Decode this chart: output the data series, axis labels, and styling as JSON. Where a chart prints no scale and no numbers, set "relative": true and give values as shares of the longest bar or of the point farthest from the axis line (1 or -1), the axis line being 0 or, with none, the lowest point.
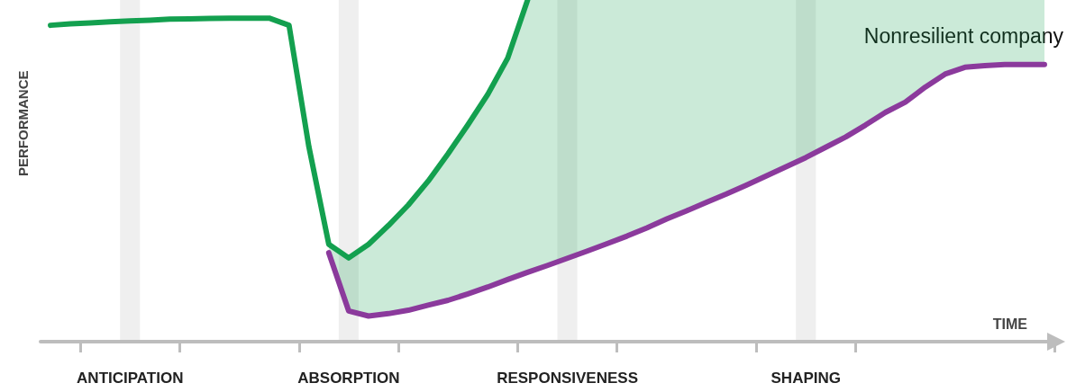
{
  "chart_data": {
    "type": "line",
    "relative": true,
    "xlabel": "TIME",
    "ylabel": "PERFORMANCE",
    "categories": [
      null,
      null,
      null,
      null,
      "ANTICIPATION",
      null,
      null,
      null,
      null,
      null,
      null,
      null,
      null,
      null,
      null,
      "ABSORPTION",
      null,
      null,
      null,
      null,
      null,
      null,
      null,
      null,
      null,
      null,
      "RESPONSIVENESS",
      null,
      null,
      null,
      null,
      null,
      null,
      null,
      null,
      null,
      null,
      null,
      "SHAPING",
      null,
      null,
      null,
      null,
      null,
      null,
      null,
      null,
      null,
      null,
      null,
      null
    ],
    "series": [
      {
        "color": "#13a04f",
        "values": [
          0.926,
          0.93,
          0.933,
          0.936,
          0.939,
          0.941,
          0.944,
          0.945,
          0.946,
          0.947,
          0.947,
          0.947,
          0.926,
          0.57,
          0.285,
          0.245,
          0.285,
          0.34,
          0.4,
          0.47,
          0.55,
          0.635,
          0.724,
          0.83,
          1,
          null,
          null,
          null,
          null,
          null,
          null,
          null,
          null,
          null,
          null,
          null,
          null,
          null,
          null,
          null,
          null,
          null,
          null,
          null,
          null,
          null,
          null,
          null,
          null,
          null,
          null
        ],
        "lower": [
          null,
          null,
          null,
          null,
          null,
          null,
          null,
          null,
          null,
          null,
          null,
          null,
          null,
          null,
          0.26,
          0.09,
          0.075,
          0.082,
          0.092,
          0.107,
          0.121,
          0.14,
          0.16,
          0.182,
          0.203,
          0.223,
          0.244,
          0.265,
          0.287,
          0.309,
          0.333,
          0.359,
          0.383,
          0.408,
          0.432,
          0.458,
          0.485,
          0.512,
          0.539,
          0.569,
          0.599,
          0.634,
          0.671,
          0.701,
          0.745,
          0.783,
          0.803,
          0.808,
          0.811,
          0.811,
          0.811
        ],
        "upper": [
          null,
          null,
          null,
          null,
          null,
          null,
          null,
          null,
          null,
          null,
          null,
          null,
          null,
          null,
          0.285,
          0.245,
          0.285,
          0.34,
          0.4,
          0.47,
          0.55,
          0.635,
          0.724,
          0.83,
          1,
          1,
          1,
          1,
          1,
          1,
          1,
          1,
          1,
          1,
          1,
          1,
          1,
          1,
          1,
          1,
          1,
          1,
          1,
          1,
          1,
          1,
          1,
          1,
          1,
          1,
          1
        ]
      },
      {
        "color": "#8b3a9c",
        "values": [
          null,
          null,
          null,
          null,
          null,
          null,
          null,
          null,
          null,
          null,
          null,
          null,
          null,
          null,
          0.26,
          0.09,
          0.075,
          0.082,
          0.092,
          0.107,
          0.121,
          0.14,
          0.16,
          0.182,
          0.203,
          0.223,
          0.244,
          0.265,
          0.287,
          0.309,
          0.333,
          0.359,
          0.383,
          0.408,
          0.432,
          0.458,
          0.485,
          0.512,
          0.539,
          0.569,
          0.599,
          0.634,
          0.671,
          0.701,
          0.745,
          0.783,
          0.803,
          0.808,
          0.811,
          0.811,
          0.811
        ]
      }
    ],
    "bands": [
      {
        "axis": "x",
        "from": "ANTICIPATION",
        "to": "ANTICIPATION",
        "color": "#efefef"
      },
      {
        "axis": "x",
        "from": "ABSORPTION",
        "to": "ABSORPTION",
        "color": "#efefef"
      },
      {
        "axis": "x",
        "from": "RESPONSIVENESS",
        "to": "RESPONSIVENESS",
        "color": "#efefef"
      },
      {
        "axis": "x",
        "from": "SHAPING",
        "to": "SHAPING",
        "color": "#efefef"
      }
    ],
    "annotations": [
      "Nonresilient company"
    ],
    "legend": false,
    "grid": false,
    "marker": "none",
    "line_style": "solid"
  }
}
